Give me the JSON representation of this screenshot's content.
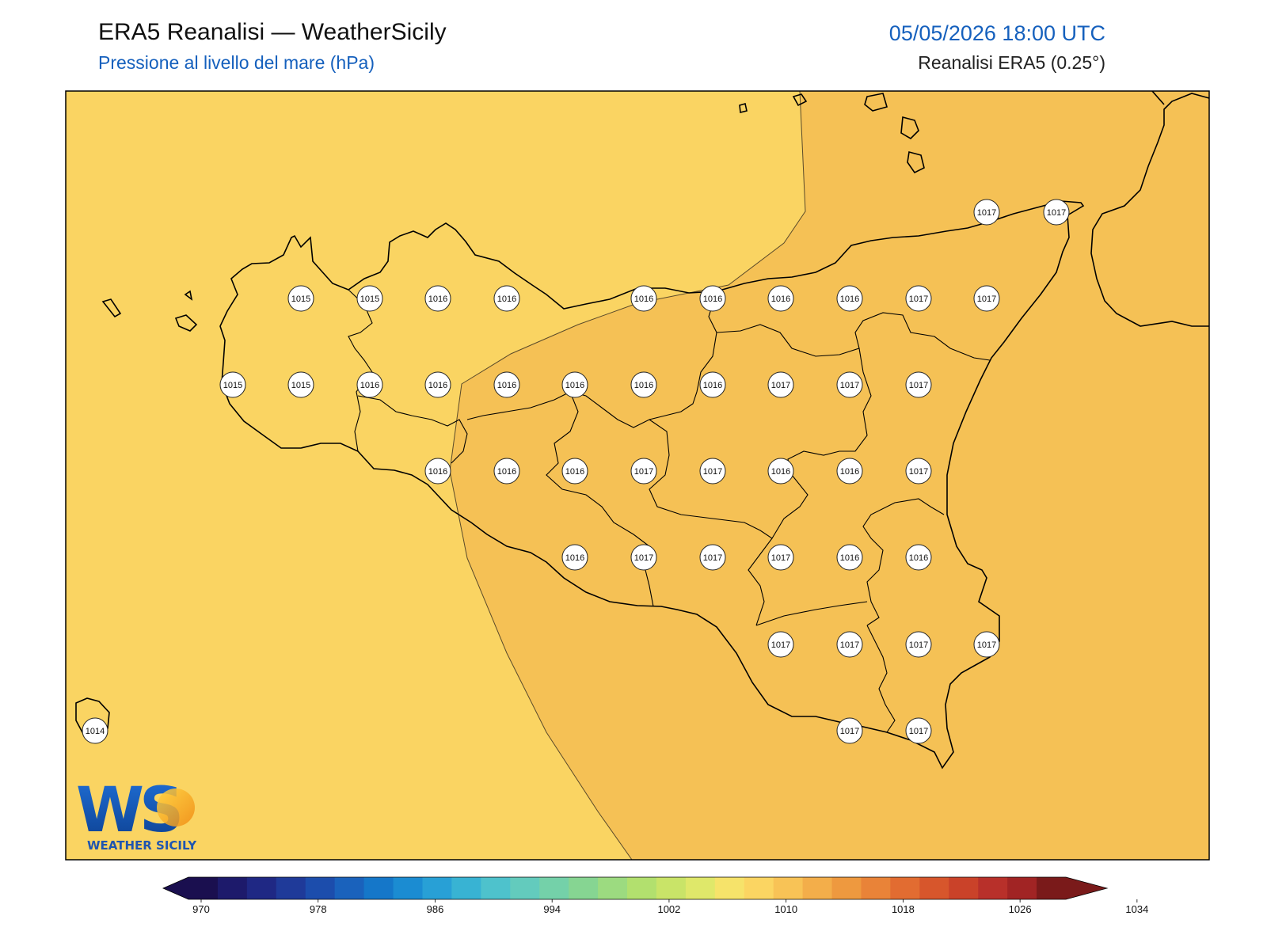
{
  "header": {
    "title": "ERA5 Reanalisi — WeatherSicily",
    "subtitle": "Pressione al livello del mare (hPa)",
    "datetime": "05/05/2026 18:00 UTC",
    "source": "Reanalisi ERA5 (0.25°)"
  },
  "colors": {
    "field_low": "#fad462",
    "field_high": "#f5c155",
    "coast": "#000000",
    "subtitle": "#1560bd"
  },
  "colorbar": {
    "ticks": [
      "970",
      "978",
      "986",
      "994",
      "1002",
      "1010",
      "1018",
      "1026",
      "1034"
    ],
    "colors": [
      "#1a0f4f",
      "#1d1a6b",
      "#1f2884",
      "#1f3a99",
      "#1c4dac",
      "#1a62bc",
      "#1577c9",
      "#1b8cd2",
      "#28a0d6",
      "#38b3d3",
      "#4ec2cc",
      "#63cbbd",
      "#74d1a9",
      "#86d592",
      "#9cdb80",
      "#b2e06e",
      "#c9e468",
      "#dfe86a",
      "#f6e36a",
      "#fbd562",
      "#f8c356",
      "#f3ae4a",
      "#ee993f",
      "#e98338",
      "#e26c31",
      "#d7562c",
      "#ca4229",
      "#b8302a",
      "#a12424",
      "#7a1a1a"
    ],
    "extend_low_color": "#1a0f4f",
    "extend_high_color": "#7a1a1a"
  },
  "stations": [
    {
      "value": "1017"
    },
    {
      "value": "1017"
    },
    {
      "value": "1015"
    },
    {
      "value": "1015"
    },
    {
      "value": "1016"
    },
    {
      "value": "1016"
    },
    {
      "value": "1016"
    },
    {
      "value": "1016"
    },
    {
      "value": "1016"
    },
    {
      "value": "1016"
    },
    {
      "value": "1017"
    },
    {
      "value": "1017"
    },
    {
      "value": "1015"
    },
    {
      "value": "1015"
    },
    {
      "value": "1016"
    },
    {
      "value": "1016"
    },
    {
      "value": "1016"
    },
    {
      "value": "1016"
    },
    {
      "value": "1016"
    },
    {
      "value": "1016"
    },
    {
      "value": "1017"
    },
    {
      "value": "1017"
    },
    {
      "value": "1017"
    },
    {
      "value": "1016"
    },
    {
      "value": "1016"
    },
    {
      "value": "1016"
    },
    {
      "value": "1017"
    },
    {
      "value": "1017"
    },
    {
      "value": "1016"
    },
    {
      "value": "1016"
    },
    {
      "value": "1017"
    },
    {
      "value": "1016"
    },
    {
      "value": "1017"
    },
    {
      "value": "1017"
    },
    {
      "value": "1017"
    },
    {
      "value": "1016"
    },
    {
      "value": "1016"
    },
    {
      "value": "1017"
    },
    {
      "value": "1017"
    },
    {
      "value": "1017"
    },
    {
      "value": "1017"
    },
    {
      "value": "1014"
    },
    {
      "value": "1017"
    },
    {
      "value": "1017"
    }
  ],
  "logo": {
    "initials": "WS",
    "name": "WEATHER SICILY"
  }
}
